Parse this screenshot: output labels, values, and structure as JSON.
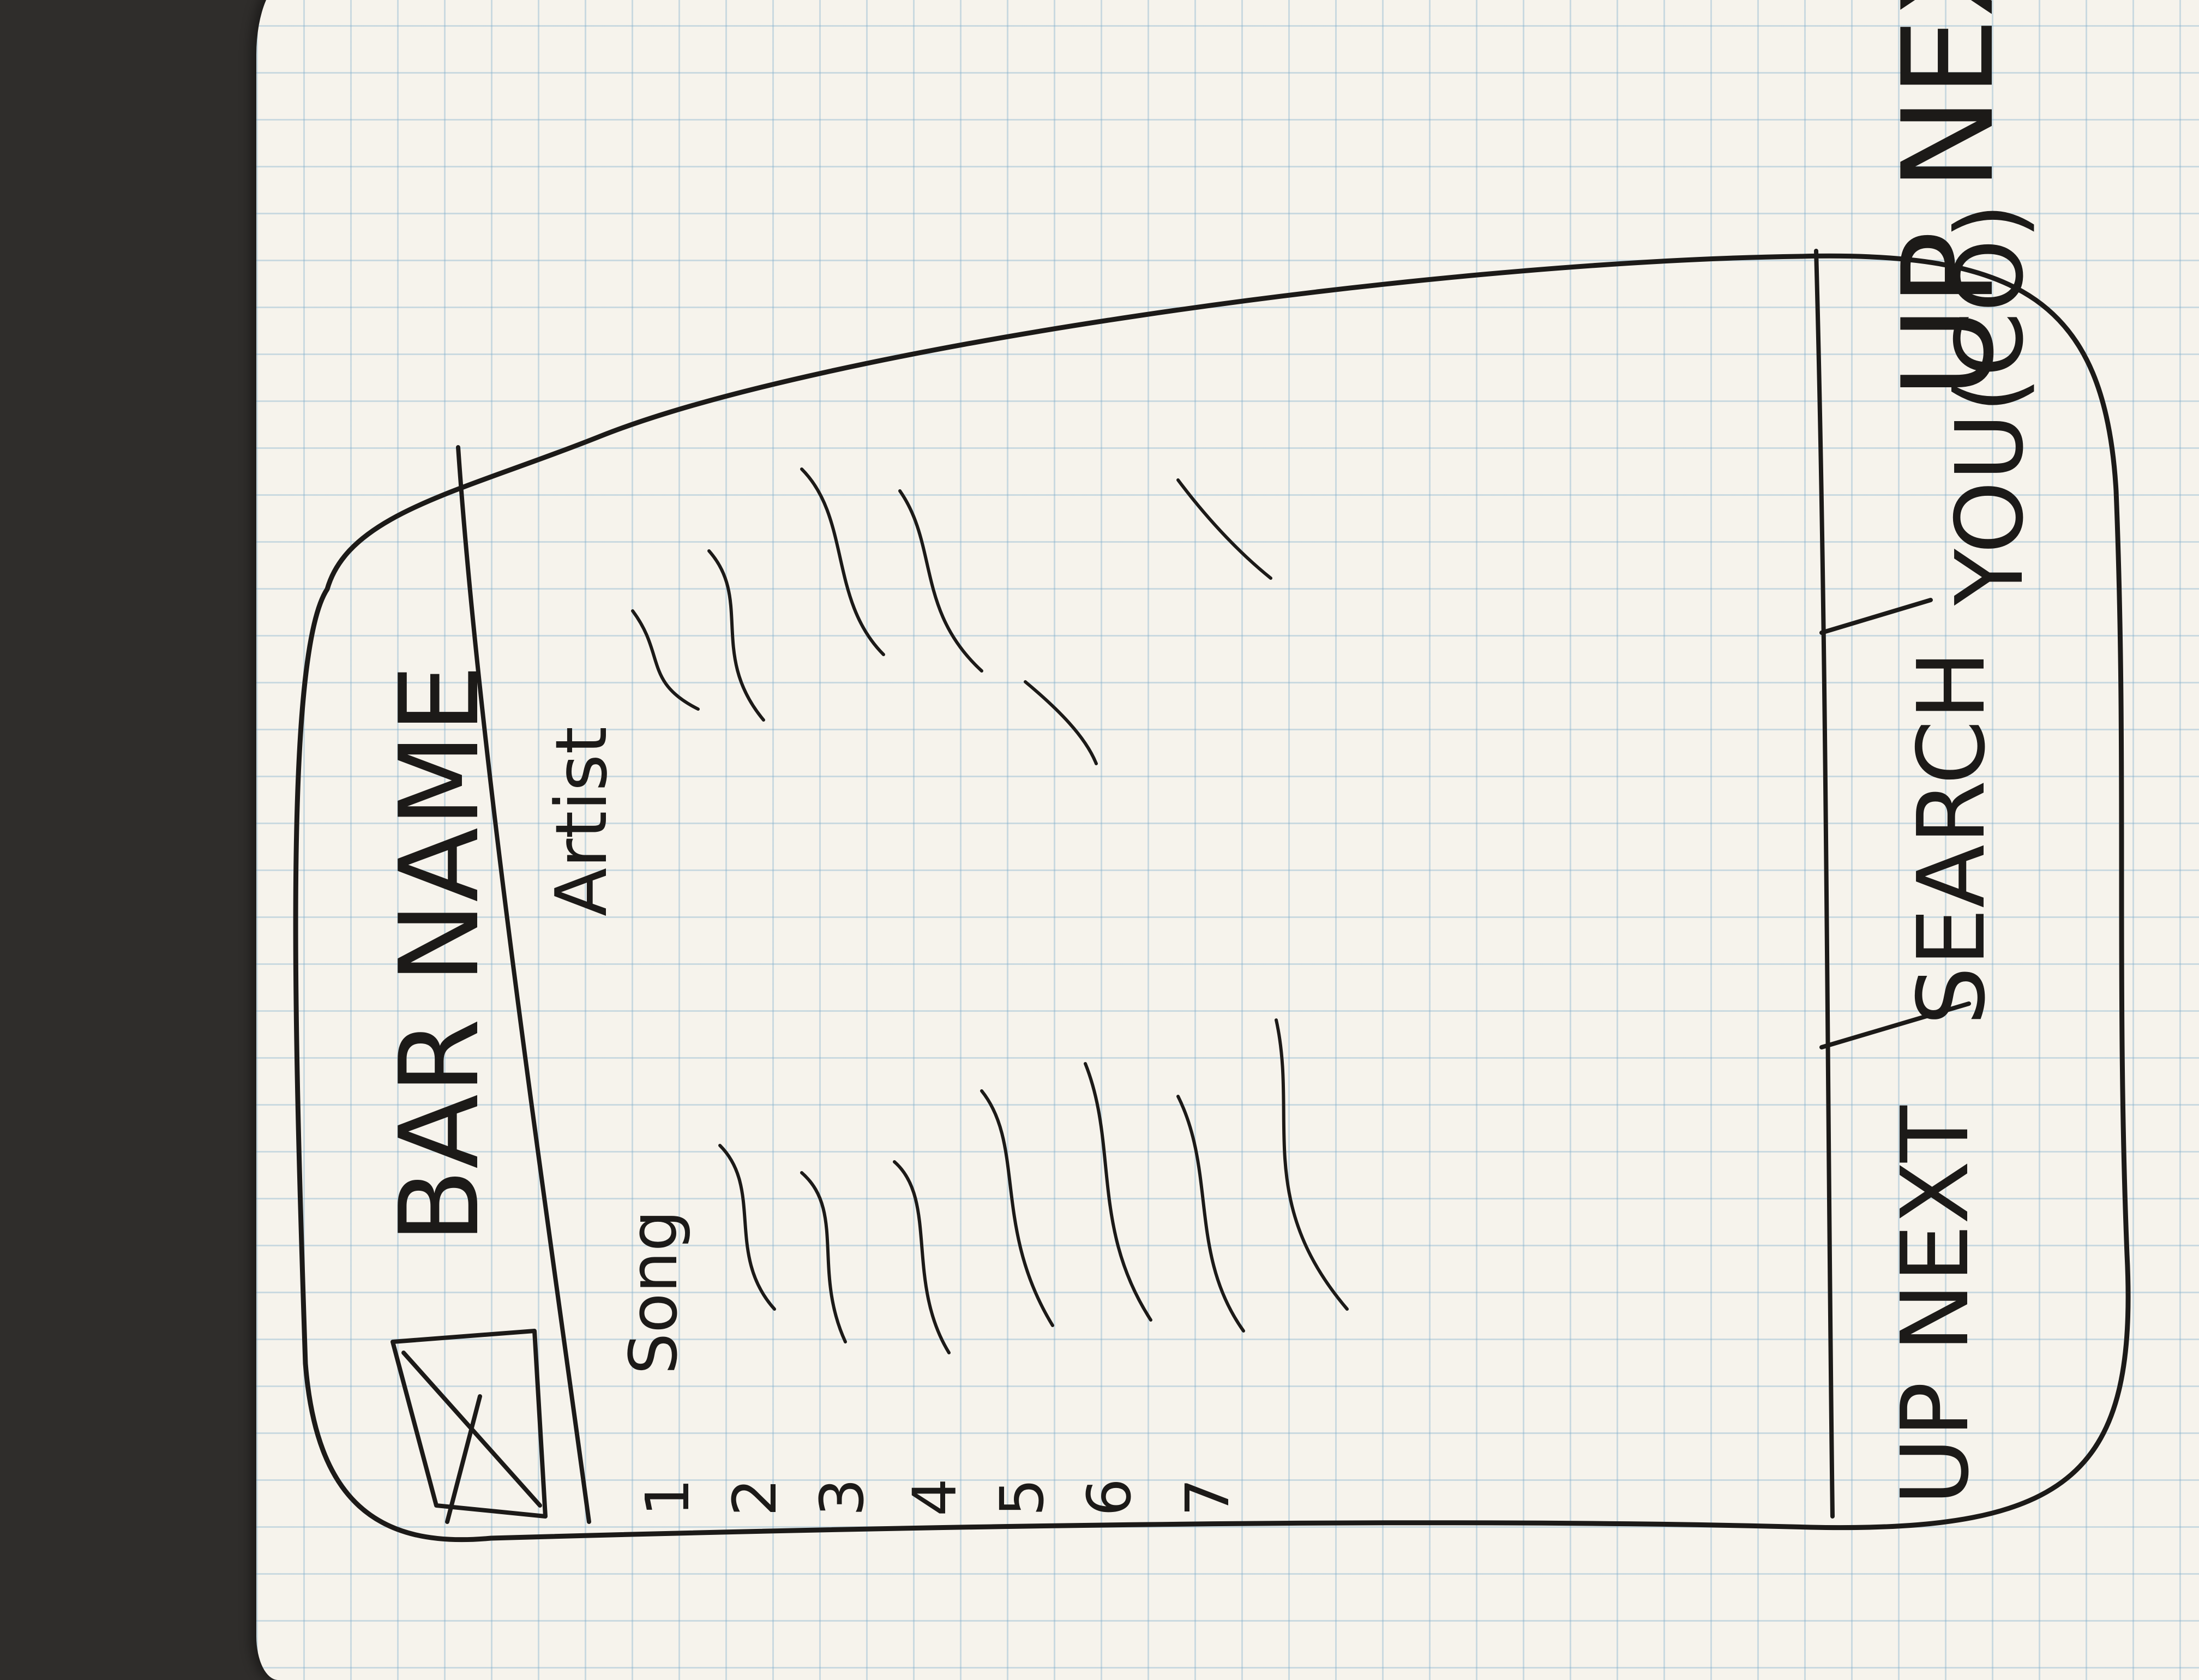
{
  "page_label": "UP NEXT",
  "app": {
    "title": "BAR NAME",
    "columns": {
      "song": "Song",
      "artist": "Artist"
    },
    "rows": [
      "1",
      "2",
      "3",
      "4",
      "5",
      "6",
      "7"
    ]
  },
  "bottom_nav": {
    "tabs": [
      {
        "label": "UP NEXT"
      },
      {
        "label": "SEARCH"
      },
      {
        "label": "YOU(CO)"
      }
    ]
  }
}
